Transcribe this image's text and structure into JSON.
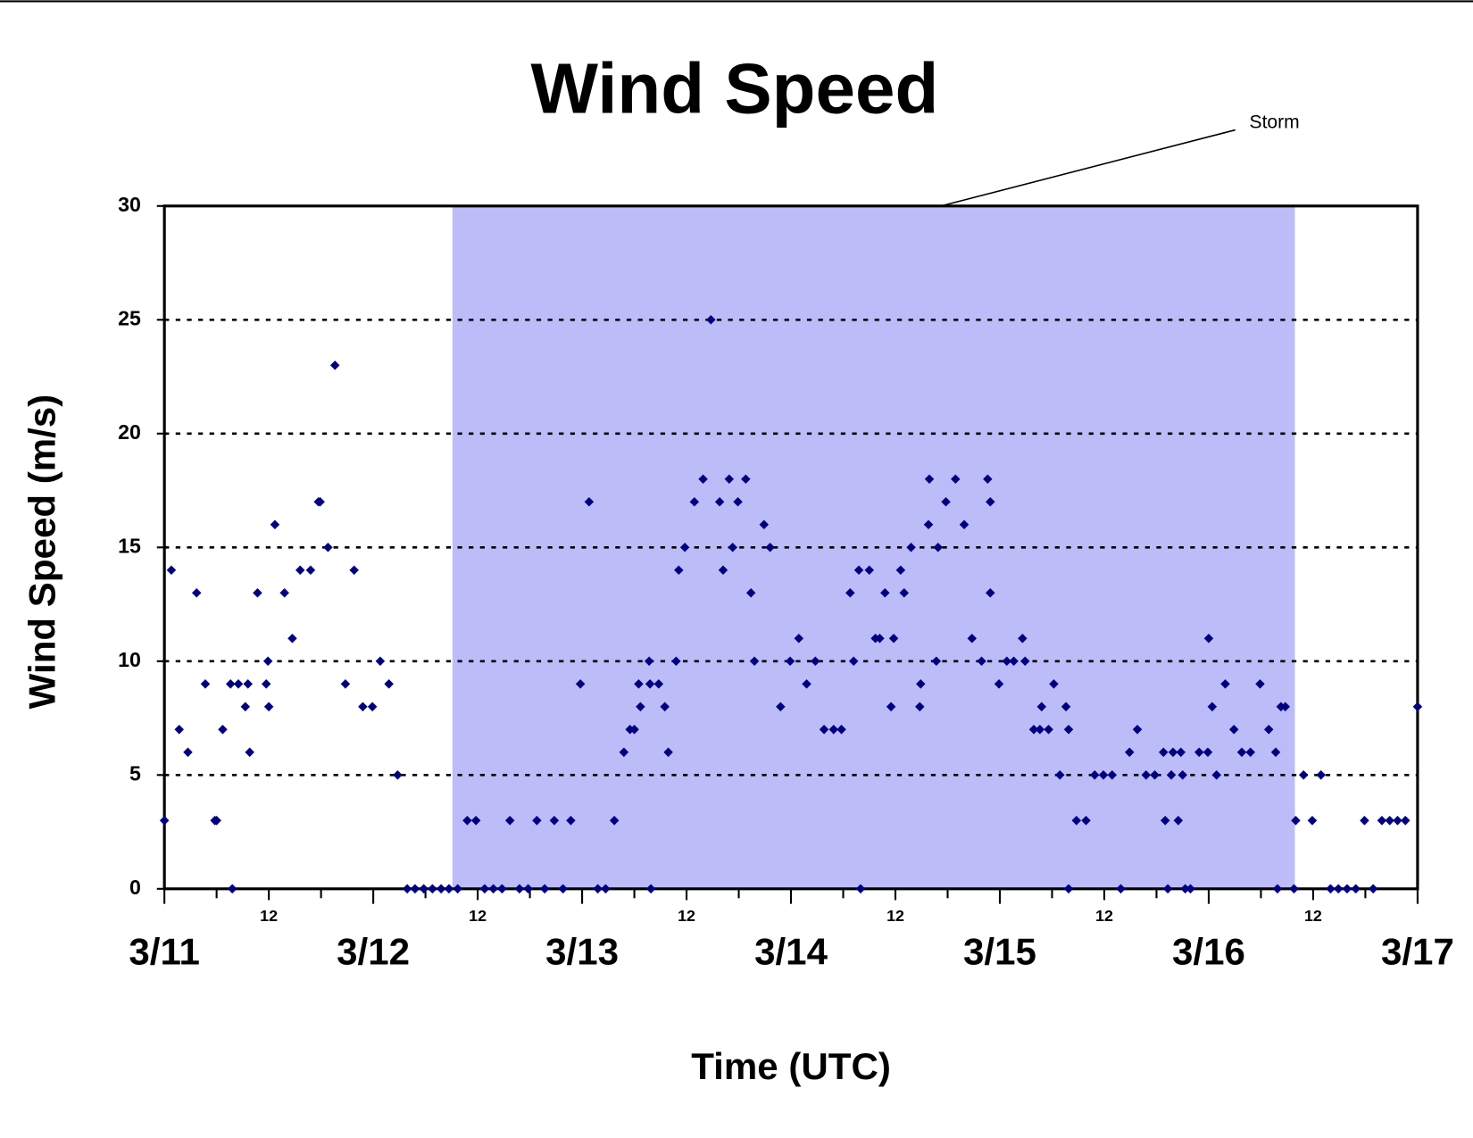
{
  "chart_data": {
    "type": "scatter",
    "title": "Wind Speed",
    "x_label": "Time (UTC)",
    "y_label": "Wind Speed (m/s)",
    "color": "#000080",
    "grid": true,
    "shaded_region": {
      "name": "Storm",
      "x": [
        33.1,
        129.9
      ],
      "color": "#bcbcf9"
    },
    "xlim": [
      0,
      144
    ],
    "xticks": [
      {
        "value": 0,
        "label": "3/11"
      },
      {
        "value": 12,
        "label": "12"
      },
      {
        "value": 24,
        "label": "3/12"
      },
      {
        "value": 36,
        "label": "12"
      },
      {
        "value": 48,
        "label": "3/13"
      },
      {
        "value": 60,
        "label": "12"
      },
      {
        "value": 72,
        "label": "3/14"
      },
      {
        "value": 84,
        "label": "12"
      },
      {
        "value": 96,
        "label": "3/15"
      },
      {
        "value": 108,
        "label": "12"
      },
      {
        "value": 120,
        "label": "3/16"
      },
      {
        "value": 132,
        "label": "12"
      },
      {
        "value": 144,
        "label": "3/17"
      }
    ],
    "xminorticks": [
      6,
      18,
      30,
      42,
      54,
      66,
      78,
      90,
      102,
      114,
      126,
      138
    ],
    "ylim": [
      0,
      30
    ],
    "yticks": [
      0,
      5,
      10,
      15,
      20,
      25,
      30
    ],
    "x": [
      0.0,
      0.8,
      1.7,
      2.7,
      3.7,
      4.7,
      5.8,
      6.0,
      6.7,
      7.6,
      7.8,
      8.5,
      9.3,
      9.6,
      9.8,
      10.7,
      11.7,
      11.9,
      12.0,
      12.7,
      13.8,
      14.7,
      15.6,
      16.8,
      17.7,
      17.9,
      18.8,
      19.6,
      20.8,
      21.8,
      22.8,
      23.9,
      24.8,
      25.8,
      26.8,
      27.9,
      28.8,
      29.8,
      30.8,
      31.8,
      32.7,
      33.7,
      34.8,
      35.8,
      36.8,
      37.8,
      38.8,
      39.7,
      40.8,
      41.8,
      42.8,
      43.7,
      44.8,
      45.8,
      46.7,
      47.8,
      48.8,
      49.8,
      50.7,
      51.7,
      52.8,
      53.5,
      54.0,
      54.5,
      54.7,
      55.7,
      55.8,
      55.9,
      56.8,
      57.5,
      57.9,
      58.8,
      59.1,
      59.8,
      60.9,
      61.9,
      62.8,
      63.8,
      64.2,
      64.9,
      65.3,
      65.9,
      66.8,
      67.4,
      67.8,
      68.9,
      69.6,
      70.8,
      71.9,
      72.9,
      73.8,
      74.8,
      75.8,
      76.9,
      77.8,
      78.8,
      79.2,
      79.8,
      80.0,
      81.0,
      81.7,
      82.2,
      82.8,
      83.5,
      83.8,
      84.6,
      85.0,
      85.8,
      86.8,
      86.9,
      87.8,
      87.9,
      88.7,
      88.9,
      89.8,
      90.9,
      91.9,
      92.8,
      93.9,
      94.6,
      94.9,
      94.9,
      95.9,
      96.8,
      97.6,
      98.6,
      98.9,
      99.9,
      100.6,
      100.8,
      101.6,
      102.2,
      102.9,
      103.6,
      103.9,
      103.9,
      104.8,
      105.9,
      106.9,
      107.9,
      108.9,
      109.9,
      110.9,
      111.8,
      112.8,
      113.8,
      114.8,
      115.0,
      115.3,
      115.7,
      115.9,
      116.5,
      116.8,
      117.0,
      117.3,
      117.9,
      118.9,
      119.9,
      120.0,
      120.4,
      120.9,
      121.9,
      122.9,
      123.8,
      124.8,
      125.9,
      126.9,
      127.7,
      127.9,
      128.3,
      128.8,
      129.8,
      130.0,
      130.9,
      131.9,
      132.9,
      134.0,
      134.9,
      135.9,
      136.9,
      137.9,
      138.9,
      139.9,
      140.8,
      141.7,
      142.6,
      144.0
    ],
    "values": [
      3,
      14,
      7,
      6,
      13,
      9,
      3,
      3,
      7,
      9,
      0,
      9,
      8,
      9,
      6,
      13,
      9,
      10,
      8,
      16,
      13,
      11,
      14,
      14,
      17,
      17,
      15,
      23,
      9,
      14,
      8,
      8,
      10,
      9,
      5,
      0,
      0,
      0,
      0,
      0,
      0,
      0,
      3,
      3,
      0,
      0,
      0,
      3,
      0,
      0,
      3,
      0,
      3,
      0,
      3,
      9,
      17,
      0,
      0,
      3,
      6,
      7,
      7,
      9,
      8,
      10,
      9,
      0,
      9,
      8,
      6,
      10,
      14,
      15,
      17,
      18,
      25,
      17,
      14,
      18,
      15,
      17,
      18,
      13,
      10,
      16,
      15,
      8,
      10,
      11,
      9,
      10,
      7,
      7,
      7,
      13,
      10,
      14,
      0,
      14,
      11,
      11,
      13,
      8,
      11,
      14,
      13,
      15,
      8,
      9,
      16,
      18,
      10,
      15,
      17,
      18,
      16,
      11,
      10,
      18,
      17,
      13,
      9,
      10,
      10,
      11,
      10,
      7,
      7,
      8,
      7,
      9,
      5,
      8,
      7,
      0,
      3,
      3,
      5,
      5,
      5,
      0,
      6,
      7,
      5,
      5,
      6,
      3,
      0,
      5,
      6,
      3,
      6,
      5,
      0,
      0,
      6,
      6,
      11,
      8,
      5,
      9,
      7,
      6,
      6,
      9,
      7,
      6,
      0,
      8,
      8,
      0,
      3,
      5,
      3,
      5,
      0,
      0,
      0,
      0,
      3,
      0,
      3,
      3,
      3,
      3,
      8
    ]
  }
}
